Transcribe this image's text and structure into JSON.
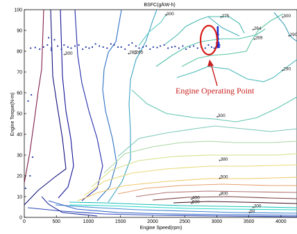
{
  "chart_data": {
    "type": "contour",
    "title": "BSFC(g/kW-h)",
    "xlabel": "Engine Speed(rpm)",
    "ylabel": "Engine Torque(N-m)",
    "xlim": [
      0,
      4250
    ],
    "ylim": [
      0,
      100
    ],
    "xticks": [
      0,
      500,
      1000,
      1500,
      2000,
      2500,
      3000,
      3500,
      4000
    ],
    "yticks": [
      0,
      10,
      20,
      30,
      40,
      50,
      60,
      70,
      80,
      90,
      100
    ],
    "grid": false,
    "contour_labels": [
      {
        "text": "300",
        "x": 2200,
        "y": 97
      },
      {
        "text": "275",
        "x": 3060,
        "y": 96
      },
      {
        "text": "300",
        "x": 4020,
        "y": 96
      },
      {
        "text": "264",
        "x": 3560,
        "y": 90
      },
      {
        "text": "269",
        "x": 3580,
        "y": 85.5
      },
      {
        "text": "290",
        "x": 4120,
        "y": 87
      },
      {
        "text": "300",
        "x": 620,
        "y": 78
      },
      {
        "text": "285",
        "x": 1620,
        "y": 78.5
      },
      {
        "text": "265",
        "x": 1720,
        "y": 78.5
      },
      {
        "text": "290",
        "x": 4020,
        "y": 70.5
      },
      {
        "text": "300",
        "x": 3000,
        "y": 48
      },
      {
        "text": "380",
        "x": 3040,
        "y": 27
      },
      {
        "text": "500",
        "x": 3040,
        "y": 18.5
      },
      {
        "text": "800",
        "x": 3040,
        "y": 10.5
      },
      {
        "text": "400",
        "x": 2600,
        "y": 8.5
      },
      {
        "text": "600",
        "x": 2600,
        "y": 6.5
      },
      {
        "text": "200",
        "x": 3560,
        "y": 4.5
      },
      {
        "text": "50",
        "x": 3500,
        "y": 2
      }
    ],
    "series": [
      {
        "values_x": [
          100,
          170,
          240,
          300,
          360,
          420,
          470,
          520,
          580,
          620,
          680,
          730,
          790,
          850,
          910,
          960,
          1010,
          1060,
          1110,
          1170,
          1230,
          1290,
          1350,
          1400,
          1460,
          1510,
          1570,
          1630,
          1680,
          1740,
          1790,
          1850,
          1900,
          1960,
          2010,
          2070,
          2120,
          2180,
          2240,
          2300,
          2350,
          2410,
          2470,
          2520,
          2580,
          2640,
          2700,
          2760,
          2820,
          2870,
          2920,
          2960,
          3000,
          3020,
          3040,
          380,
          420,
          60,
          110,
          90,
          20,
          130
        ],
        "values_y": [
          81.5,
          81.8,
          81,
          82,
          83,
          81.5,
          85.5,
          82.5,
          81,
          83,
          82,
          81.5,
          82.5,
          83,
          81,
          82,
          81.5,
          82,
          83.5,
          82.5,
          82,
          81.5,
          83.5,
          83,
          82,
          82,
          81,
          83,
          84,
          82.5,
          81.5,
          82,
          82.5,
          81,
          82,
          81.8,
          82.5,
          83,
          81.5,
          82,
          82.3,
          81.5,
          82.5,
          81,
          82,
          82.5,
          81.5,
          82,
          81.5,
          83,
          82,
          81.5,
          82,
          82.5,
          82,
          86.5,
          80.5,
          56,
          59,
          20,
          14,
          29
        ]
      },
      {
        "name": "Engine Operating Point",
        "values_x": [
          2990,
          3000,
          3010,
          3020,
          3030,
          3000,
          3010,
          3020,
          3030,
          3040,
          3000,
          3010,
          3020,
          3030,
          3010,
          3020,
          3010,
          3020,
          3015,
          3015
        ],
        "values_y": [
          82,
          82,
          82,
          82,
          82,
          83,
          83,
          83,
          83,
          83,
          84,
          84,
          84,
          84,
          86,
          86,
          88,
          88,
          90,
          91.5
        ]
      }
    ],
    "annotation": {
      "text": "Engine Operating Point",
      "arrow_tip_x": 3040,
      "arrow_tip_y": 76
    }
  },
  "colors": {
    "operating_point": "#1a2fd0",
    "annotation": "#c8201e",
    "dots": "#2437a8"
  }
}
